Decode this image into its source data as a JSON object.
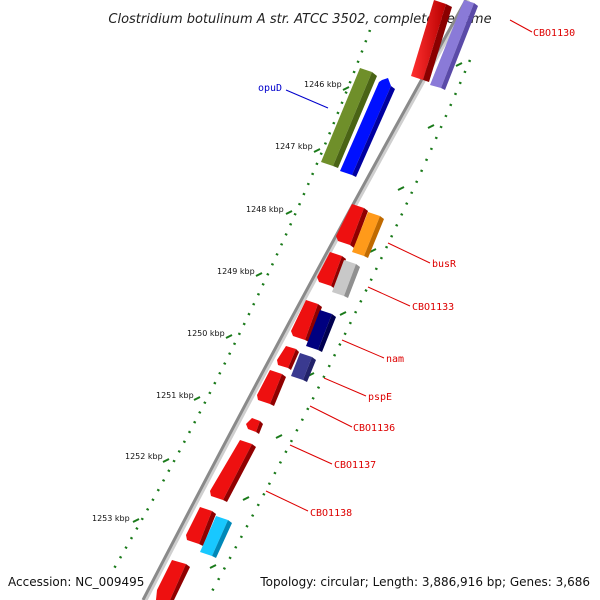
{
  "title": "Clostridium botulinum A str. ATCC 3502, complete genome",
  "accession": "Accession: NC_009495",
  "topology": "Topology: circular; Length: 3,886,916 bp; Genes: 3,686",
  "colors": {
    "backbone": "#888888",
    "ticks": "#1a7a1a",
    "label_red": "#dd0000",
    "label_blue": "#0000cc"
  },
  "kbp_ticks": [
    "1246 kbp",
    "1247 kbp",
    "1248 kbp",
    "1249 kbp",
    "1250 kbp",
    "1251 kbp",
    "1252 kbp",
    "1253 kbp"
  ],
  "gene_labels": [
    {
      "text": "CBO1130",
      "color": "#dd0000"
    },
    {
      "text": "opuD",
      "color": "#0000cc"
    },
    {
      "text": "busR",
      "color": "#dd0000"
    },
    {
      "text": "CBO1133",
      "color": "#dd0000"
    },
    {
      "text": "nam",
      "color": "#dd0000"
    },
    {
      "text": "pspE",
      "color": "#dd0000"
    },
    {
      "text": "CBO1136",
      "color": "#dd0000"
    },
    {
      "text": "CBO1137",
      "color": "#dd0000"
    },
    {
      "text": "CBO1138",
      "color": "#dd0000"
    }
  ]
}
